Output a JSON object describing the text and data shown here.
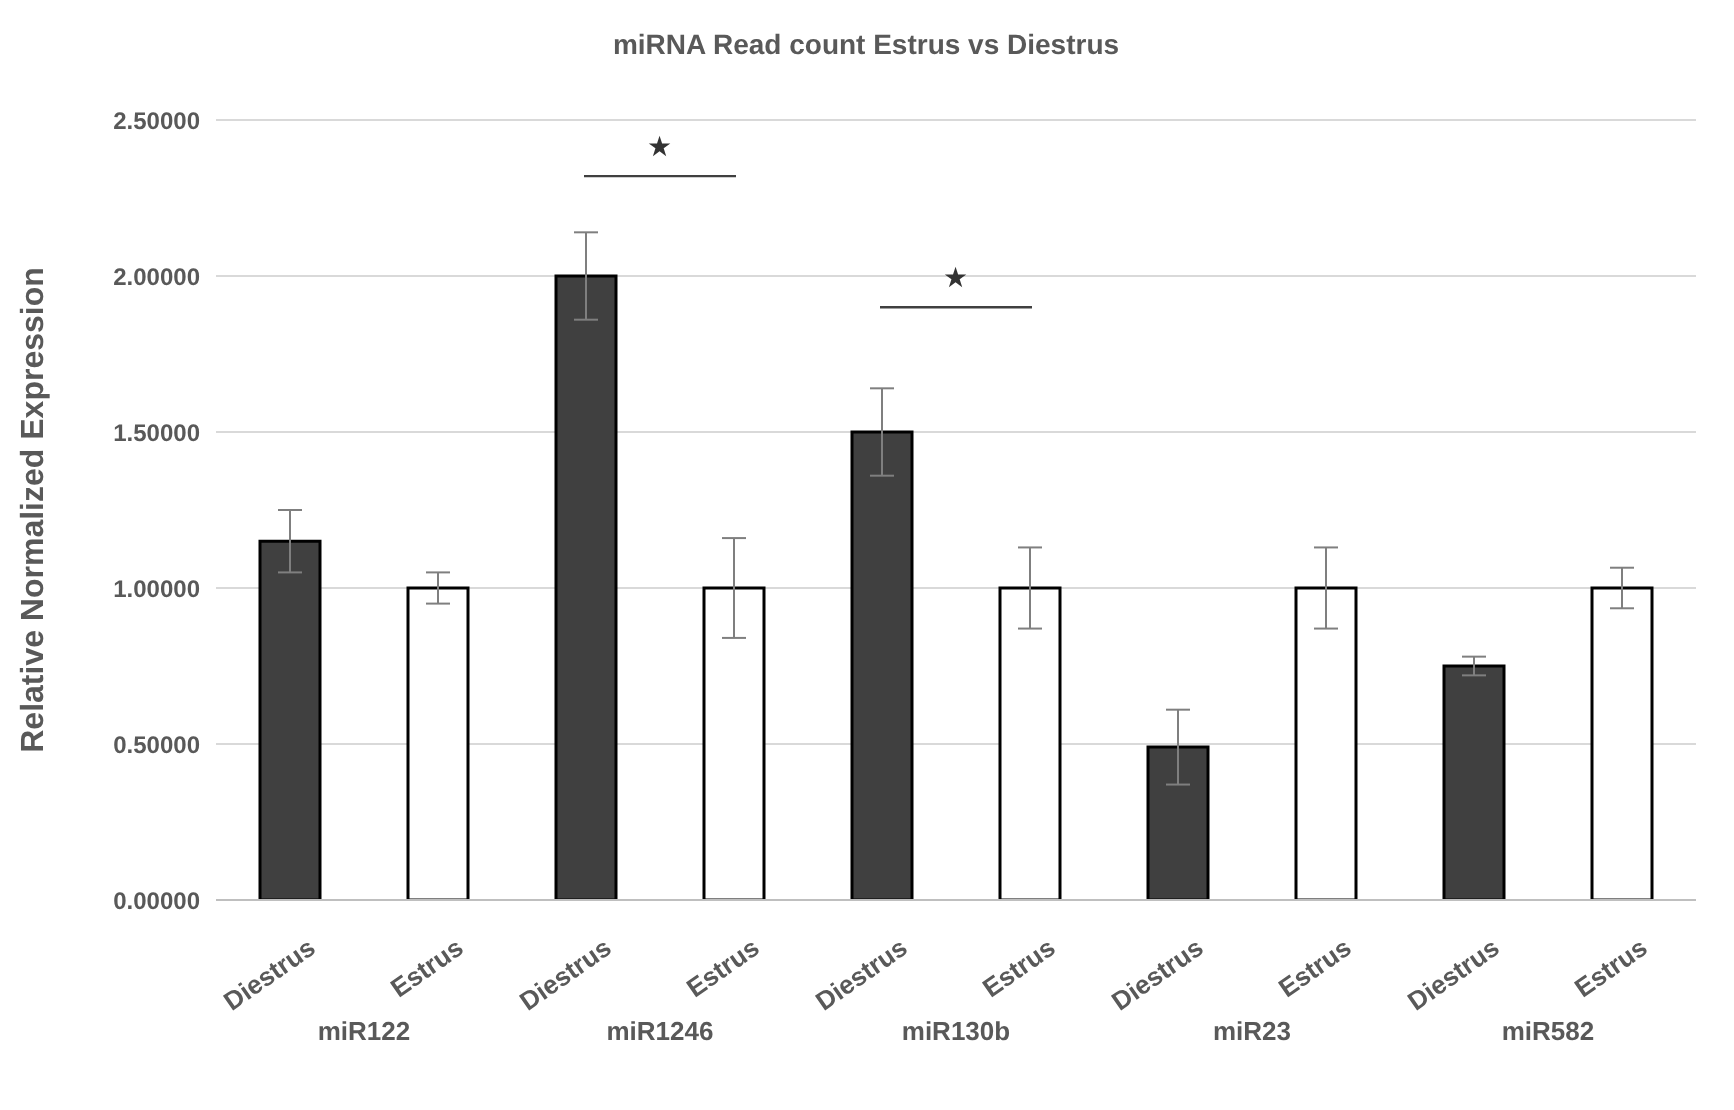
{
  "chart_data": {
    "type": "bar",
    "title": "miRNA Read count Estrus vs Diestrus",
    "ylabel": "Relative Normalized Expression",
    "categories": [
      "miR122",
      "miR1246",
      "miR130b",
      "miR23",
      "miR582"
    ],
    "series": [
      {
        "name": "Diestrus",
        "color": "#404040",
        "values": [
          1.15,
          2.0,
          1.5,
          0.49,
          0.75
        ],
        "errors": [
          0.1,
          0.14,
          0.14,
          0.12,
          0.03
        ]
      },
      {
        "name": "Estrus",
        "color": "#ffffff",
        "values": [
          1.0,
          1.0,
          1.0,
          1.0,
          1.0
        ],
        "errors": [
          0.05,
          0.16,
          0.13,
          0.13,
          0.065
        ]
      }
    ],
    "ylim": [
      0,
      2.5
    ],
    "yticks": [
      {
        "value": 0,
        "label": "0.00000"
      },
      {
        "value": 0.5,
        "label": "0.50000"
      },
      {
        "value": 1,
        "label": "1.00000"
      },
      {
        "value": 1.5,
        "label": "1.50000"
      },
      {
        "value": 2,
        "label": "2.00000"
      },
      {
        "value": 2.5,
        "label": "2.50000"
      }
    ],
    "grid": "y",
    "legend": false,
    "annotations": [
      "★",
      "★"
    ]
  }
}
